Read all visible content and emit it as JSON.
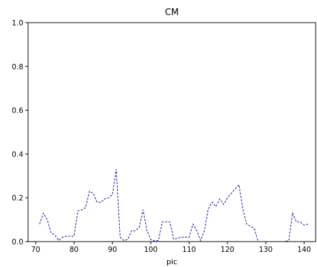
{
  "chart_data": {
    "type": "line",
    "title": "CM",
    "xlabel": "pic",
    "ylabel": "",
    "xlim": [
      68,
      143
    ],
    "ylim": [
      0,
      1.0
    ],
    "xticks": [
      70,
      80,
      90,
      100,
      110,
      120,
      130,
      140
    ],
    "yticks": [
      0.0,
      0.2,
      0.4,
      0.6,
      0.8,
      1.0
    ],
    "xtick_labels": [
      "70",
      "80",
      "90",
      "100",
      "110",
      "120",
      "130",
      "140"
    ],
    "ytick_labels": [
      "0.0",
      "0.2",
      "0.4",
      "0.6",
      "0.8",
      "1.0"
    ],
    "grid": false,
    "legend": "none",
    "series": [
      {
        "line_style": "dashed",
        "color": "#0a0a9e",
        "x": [
          71,
          72,
          73,
          74,
          75,
          76,
          77,
          78,
          79,
          80,
          81,
          82,
          83,
          84,
          85,
          86,
          87,
          88,
          89,
          90,
          91,
          92,
          93,
          94,
          95,
          96,
          97,
          98,
          99,
          100,
          101,
          102,
          103,
          104,
          105,
          106,
          107,
          108,
          109,
          110,
          111,
          112,
          113,
          114,
          115,
          116,
          117,
          118,
          119,
          120,
          121,
          122,
          123,
          124,
          125,
          126,
          127,
          128,
          129,
          130,
          131,
          132,
          133,
          134,
          135,
          136,
          137,
          138,
          139,
          140,
          141
        ],
        "y": [
          0.08,
          0.13,
          0.1,
          0.04,
          0.03,
          0.005,
          0.02,
          0.025,
          0.025,
          0.025,
          0.14,
          0.145,
          0.155,
          0.23,
          0.22,
          0.18,
          0.18,
          0.195,
          0.2,
          0.215,
          0.33,
          0.02,
          0.005,
          0.01,
          0.05,
          0.05,
          0.065,
          0.145,
          0.05,
          0.01,
          0.003,
          0.005,
          0.09,
          0.09,
          0.09,
          0.01,
          0.015,
          0.02,
          0.02,
          0.02,
          0.08,
          0.05,
          0.005,
          0.05,
          0.15,
          0.18,
          0.16,
          0.195,
          0.17,
          0.2,
          0.22,
          0.24,
          0.26,
          0.15,
          0.08,
          0.07,
          0.06,
          0.0,
          0.0,
          0.0,
          0.0,
          0.0,
          0.0,
          0.0,
          0.0,
          0.005,
          0.13,
          0.09,
          0.09,
          0.075,
          0.08
        ]
      }
    ]
  }
}
